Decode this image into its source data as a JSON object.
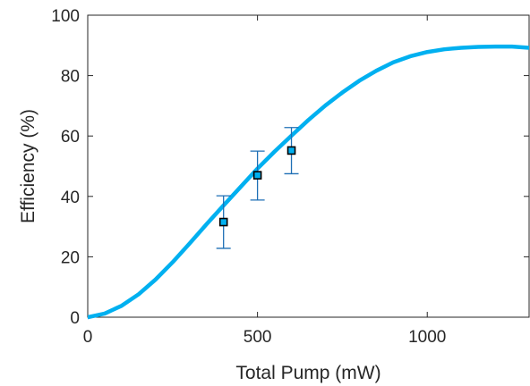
{
  "chart_data": {
    "type": "line",
    "title": "",
    "xlabel": "Total Pump (mW)",
    "ylabel": "Efficiency (%)",
    "xlim": [
      0,
      1300
    ],
    "ylim": [
      0,
      100
    ],
    "xticks": [
      0,
      500,
      1000
    ],
    "xtick_labels": [
      "0",
      "500",
      "1000"
    ],
    "yticks": [
      0,
      20,
      40,
      60,
      80,
      100
    ],
    "ytick_labels": [
      "0",
      "20",
      "40",
      "60",
      "80",
      "100"
    ],
    "grid": false,
    "box": true,
    "series": [
      {
        "type": "line",
        "color": "#00B0F0",
        "x": [
          0,
          50,
          100,
          150,
          200,
          250,
          300,
          350,
          400,
          450,
          500,
          550,
          600,
          650,
          700,
          750,
          800,
          850,
          900,
          950,
          1000,
          1050,
          1100,
          1150,
          1200,
          1250,
          1300
        ],
        "y": [
          0,
          1.2,
          3.8,
          7.6,
          12.5,
          18.2,
          24.4,
          30.8,
          37.0,
          43.1,
          49.2,
          54.8,
          60.1,
          65.3,
          70.1,
          74.4,
          78.3,
          81.6,
          84.4,
          86.4,
          87.8,
          88.7,
          89.2,
          89.5,
          89.6,
          89.6,
          89.2
        ]
      },
      {
        "type": "errorbar",
        "marker": "square",
        "color": "#1E6FB5",
        "marker_fill": "#00B0F0",
        "x": [
          400,
          500,
          600
        ],
        "y": [
          31.5,
          47.0,
          55.2
        ],
        "yerr_low": [
          22.8,
          38.8,
          47.5
        ],
        "yerr_high": [
          40.2,
          55.0,
          62.8
        ]
      }
    ]
  }
}
